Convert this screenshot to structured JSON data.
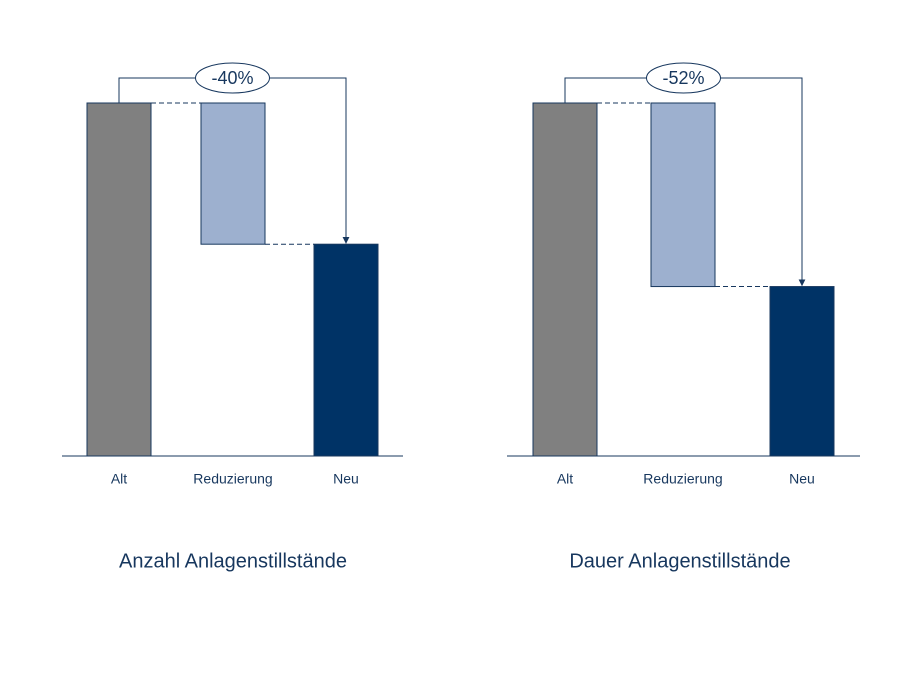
{
  "chart_data": [
    {
      "type": "waterfall",
      "title": "Anzahl Anlagenstillstände",
      "categories": [
        "Alt",
        "Reduzierung",
        "Neu"
      ],
      "values": [
        100,
        -40,
        60
      ],
      "value_labels": [
        null,
        "-40%",
        null
      ],
      "colors": [
        "#808080",
        "#9db0cf",
        "#003366"
      ]
    },
    {
      "type": "waterfall",
      "title": "Dauer Anlagenstillstände",
      "categories": [
        "Alt",
        "Reduzierung",
        "Neu"
      ],
      "values": [
        100,
        -52,
        48
      ],
      "value_labels": [
        null,
        "-52%",
        null
      ],
      "colors": [
        "#808080",
        "#9db0cf",
        "#003366"
      ]
    }
  ]
}
